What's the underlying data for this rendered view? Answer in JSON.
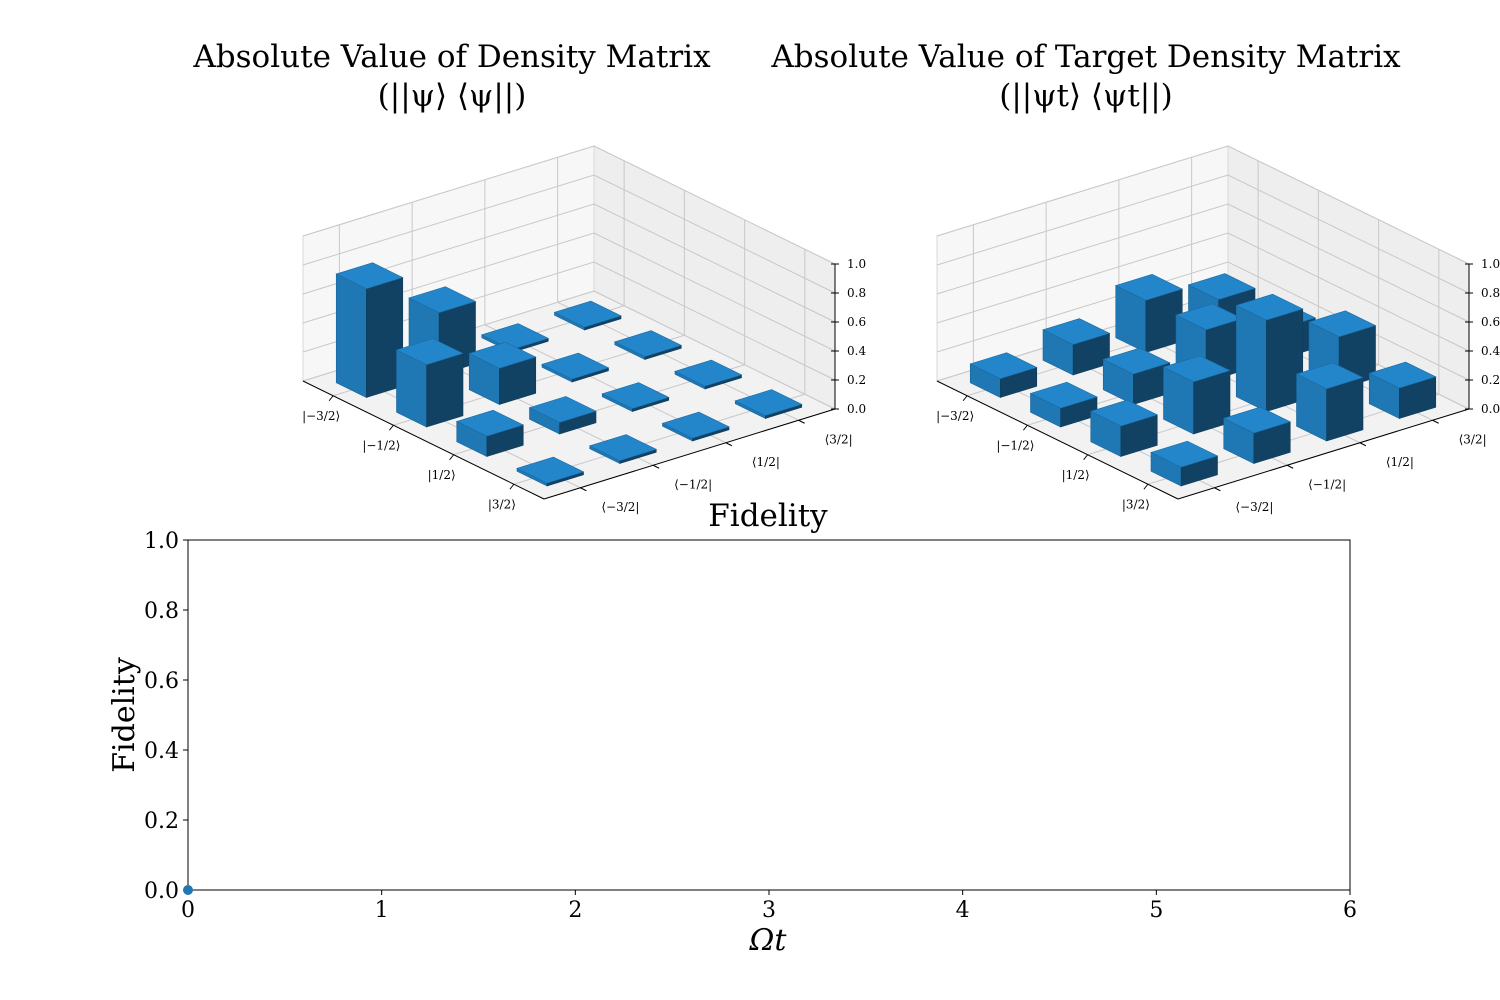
{
  "chart_data": [
    {
      "type": "bar3d",
      "title_line1": "Absolute Value of Density Matrix",
      "title_line2": "(||ψ⟩ ⟨ψ||)",
      "row_labels": [
        "|−3/2⟩",
        "|−1/2⟩",
        "|1/2⟩",
        "|3/2⟩"
      ],
      "col_labels": [
        "⟨−3/2|",
        "⟨−1/2|",
        "⟨1/2|",
        "⟨3/2|"
      ],
      "z_ticks": [
        "0.0",
        "0.2",
        "0.4",
        "0.6",
        "0.8",
        "1.0"
      ],
      "zlim": [
        0,
        1
      ],
      "values": [
        [
          0.75,
          0.43,
          0.02,
          0.02
        ],
        [
          0.43,
          0.25,
          0.02,
          0.02
        ],
        [
          0.14,
          0.08,
          0.02,
          0.02
        ],
        [
          0.02,
          0.02,
          0.02,
          0.02
        ]
      ],
      "bar_color": "#1f77b4"
    },
    {
      "type": "bar3d",
      "title_line1": "Absolute Value of Target Density Matrix",
      "title_line2": "(||ψt⟩ ⟨ψt||)",
      "row_labels": [
        "|−3/2⟩",
        "|−1/2⟩",
        "|1/2⟩",
        "|3/2⟩"
      ],
      "col_labels": [
        "⟨−3/2|",
        "⟨−1/2|",
        "⟨1/2|",
        "⟨3/2|"
      ],
      "z_ticks": [
        "0.0",
        "0.2",
        "0.4",
        "0.6",
        "0.8",
        "1.0"
      ],
      "zlim": [
        0,
        1
      ],
      "values": [
        [
          0.13,
          0.21,
          0.36,
          0.21
        ],
        [
          0.13,
          0.21,
          0.36,
          0.21
        ],
        [
          0.21,
          0.36,
          0.63,
          0.36
        ],
        [
          0.13,
          0.21,
          0.36,
          0.21
        ]
      ],
      "bar_color": "#1f77b4"
    },
    {
      "type": "scatter",
      "title": "Fidelity",
      "xlabel": "Ωt",
      "ylabel": "Fidelity",
      "xlim": [
        0,
        6
      ],
      "ylim": [
        0,
        1
      ],
      "x_ticks": [
        "0",
        "1",
        "2",
        "3",
        "4",
        "5",
        "6"
      ],
      "y_ticks": [
        "0.0",
        "0.2",
        "0.4",
        "0.6",
        "0.8",
        "1.0"
      ],
      "x": [
        0
      ],
      "y": [
        0
      ],
      "color": "#1f77b4"
    }
  ]
}
